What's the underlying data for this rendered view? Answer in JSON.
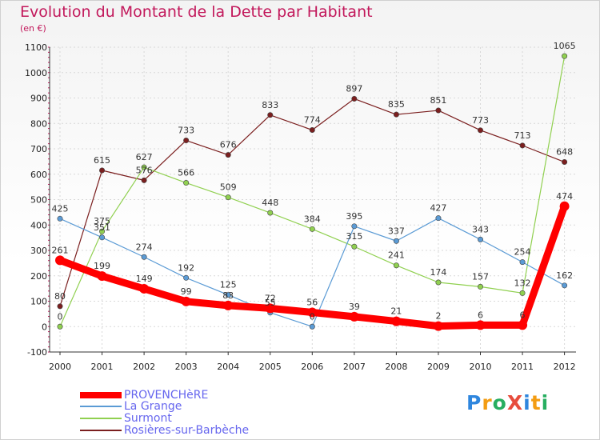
{
  "title": "Evolution du Montant de la Dette par Habitant",
  "subtitle": "(en €)",
  "logo": "ProXiti",
  "chart_data": {
    "type": "line",
    "title": "Evolution du Montant de la Dette par Habitant",
    "ylabel": "(en €)",
    "ylim": [
      -100,
      1100
    ],
    "yticks": [
      -100,
      0,
      100,
      200,
      300,
      400,
      500,
      600,
      700,
      800,
      900,
      1000,
      1100
    ],
    "x": [
      "2000",
      "2001",
      "2002",
      "2003",
      "2004",
      "2005",
      "2006",
      "2007",
      "2008",
      "2009",
      "2010",
      "2011",
      "2012"
    ],
    "grid": true,
    "legend_position": "bottom-left",
    "series": [
      {
        "name": "PROVENCHèRE",
        "color": "#ff0000",
        "values": [
          261,
          199,
          149,
          99,
          83,
          72,
          56,
          39,
          21,
          2,
          6,
          6,
          474
        ]
      },
      {
        "name": "La Grange",
        "color": "#5b9bd5",
        "values": [
          425,
          351,
          274,
          192,
          125,
          55,
          0,
          395,
          337,
          427,
          343,
          254,
          162
        ]
      },
      {
        "name": "Surmont",
        "color": "#90d050",
        "values": [
          0,
          375,
          627,
          566,
          509,
          448,
          384,
          315,
          241,
          174,
          157,
          132,
          1065
        ]
      },
      {
        "name": "Rosières-sur-Barbèche",
        "color": "#7b1f1f",
        "values": [
          80,
          615,
          576,
          733,
          676,
          833,
          774,
          897,
          835,
          851,
          773,
          713,
          648
        ]
      }
    ]
  }
}
